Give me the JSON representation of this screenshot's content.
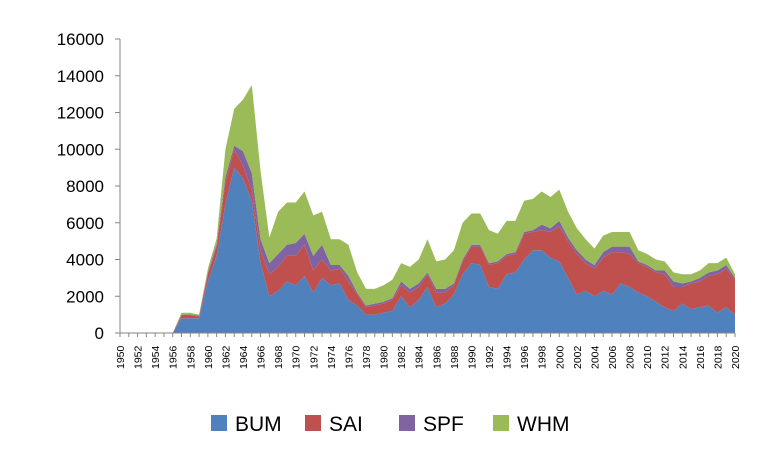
{
  "chart_data": {
    "type": "area",
    "stacked": true,
    "title": "",
    "xlabel": "",
    "ylabel": "",
    "ylim": [
      0,
      16000
    ],
    "yticks": [
      0,
      2000,
      4000,
      6000,
      8000,
      10000,
      12000,
      14000,
      16000
    ],
    "ytick_labels": [
      "0",
      "2000",
      "4000",
      "6000",
      "8000",
      "10000",
      "12000",
      "14000",
      "16000"
    ],
    "x": [
      1950,
      1951,
      1952,
      1953,
      1954,
      1955,
      1956,
      1957,
      1958,
      1959,
      1960,
      1961,
      1962,
      1963,
      1964,
      1965,
      1966,
      1967,
      1968,
      1969,
      1970,
      1971,
      1972,
      1973,
      1974,
      1975,
      1976,
      1977,
      1978,
      1979,
      1980,
      1981,
      1982,
      1983,
      1984,
      1985,
      1986,
      1987,
      1988,
      1989,
      1990,
      1991,
      1992,
      1993,
      1994,
      1995,
      1996,
      1997,
      1998,
      1999,
      2000,
      2001,
      2002,
      2003,
      2004,
      2005,
      2006,
      2007,
      2008,
      2009,
      2010,
      2011,
      2012,
      2013,
      2014,
      2015,
      2016,
      2017,
      2018,
      2019,
      2020
    ],
    "xtick_labels": [
      "1950",
      "1952",
      "1954",
      "1956",
      "1958",
      "1960",
      "1962",
      "1964",
      "1966",
      "1968",
      "1970",
      "1972",
      "1974",
      "1976",
      "1978",
      "1980",
      "1982",
      "1984",
      "1986",
      "1988",
      "1990",
      "1992",
      "1994",
      "1996",
      "1998",
      "2000",
      "2002",
      "2004",
      "2006",
      "2008",
      "2010",
      "2012",
      "2014",
      "2016",
      "2018",
      "2020"
    ],
    "grid": false,
    "legend_position": "bottom",
    "series": [
      {
        "name": "BUM",
        "color": "#4F81BD",
        "values": [
          0,
          0,
          0,
          0,
          0,
          0,
          0,
          800,
          800,
          800,
          2800,
          4200,
          7000,
          9000,
          8400,
          7200,
          3800,
          2000,
          2300,
          2800,
          2600,
          3100,
          2200,
          3000,
          2600,
          2700,
          1800,
          1500,
          1000,
          1000,
          1100,
          1200,
          2000,
          1400,
          1800,
          2500,
          1400,
          1600,
          2100,
          3200,
          3800,
          3700,
          2500,
          2400,
          3200,
          3300,
          4000,
          4500,
          4500,
          4100,
          3900,
          3000,
          2100,
          2300,
          2000,
          2300,
          2100,
          2700,
          2500,
          2200,
          2000,
          1700,
          1400,
          1200,
          1600,
          1300,
          1400,
          1500,
          1100,
          1400,
          1000
        ]
      },
      {
        "name": "SAI",
        "color": "#C0504D",
        "values": [
          0,
          0,
          0,
          0,
          0,
          0,
          0,
          150,
          150,
          100,
          400,
          500,
          1200,
          1000,
          700,
          600,
          700,
          1200,
          1300,
          1400,
          1600,
          1700,
          1200,
          1000,
          800,
          800,
          1000,
          600,
          400,
          500,
          500,
          600,
          600,
          800,
          700,
          700,
          800,
          600,
          500,
          700,
          900,
          1000,
          1200,
          1400,
          1000,
          1000,
          1400,
          1000,
          1100,
          1400,
          1900,
          2000,
          2200,
          1500,
          1500,
          1800,
          2300,
          1700,
          1800,
          1600,
          1600,
          1600,
          1800,
          1300,
          900,
          1400,
          1400,
          1600,
          2100,
          2100,
          1900
        ]
      },
      {
        "name": "SPF",
        "color": "#8064A2",
        "values": [
          0,
          0,
          0,
          0,
          0,
          0,
          0,
          50,
          50,
          50,
          100,
          150,
          300,
          200,
          800,
          900,
          600,
          600,
          700,
          600,
          700,
          600,
          800,
          800,
          300,
          200,
          300,
          100,
          100,
          100,
          100,
          100,
          200,
          200,
          200,
          100,
          200,
          200,
          100,
          100,
          100,
          100,
          100,
          100,
          100,
          100,
          100,
          100,
          300,
          200,
          300,
          200,
          200,
          200,
          200,
          300,
          300,
          300,
          400,
          100,
          100,
          100,
          200,
          300,
          200,
          100,
          200,
          200,
          200,
          200,
          100
        ]
      },
      {
        "name": "WHM",
        "color": "#9BBB59",
        "values": [
          0,
          0,
          0,
          0,
          0,
          0,
          0,
          100,
          100,
          50,
          200,
          300,
          1500,
          2000,
          2800,
          4800,
          3700,
          1400,
          2300,
          2300,
          2200,
          2300,
          2200,
          1800,
          1400,
          1400,
          1700,
          1100,
          900,
          800,
          900,
          1000,
          1000,
          1200,
          1300,
          1800,
          1500,
          1600,
          1800,
          2000,
          1700,
          1700,
          1800,
          1500,
          1800,
          1700,
          1700,
          1700,
          1800,
          1700,
          1700,
          1400,
          1200,
          1100,
          900,
          900,
          800,
          800,
          800,
          600,
          600,
          600,
          500,
          500,
          500,
          400,
          400,
          500,
          400,
          400,
          200
        ]
      }
    ]
  }
}
